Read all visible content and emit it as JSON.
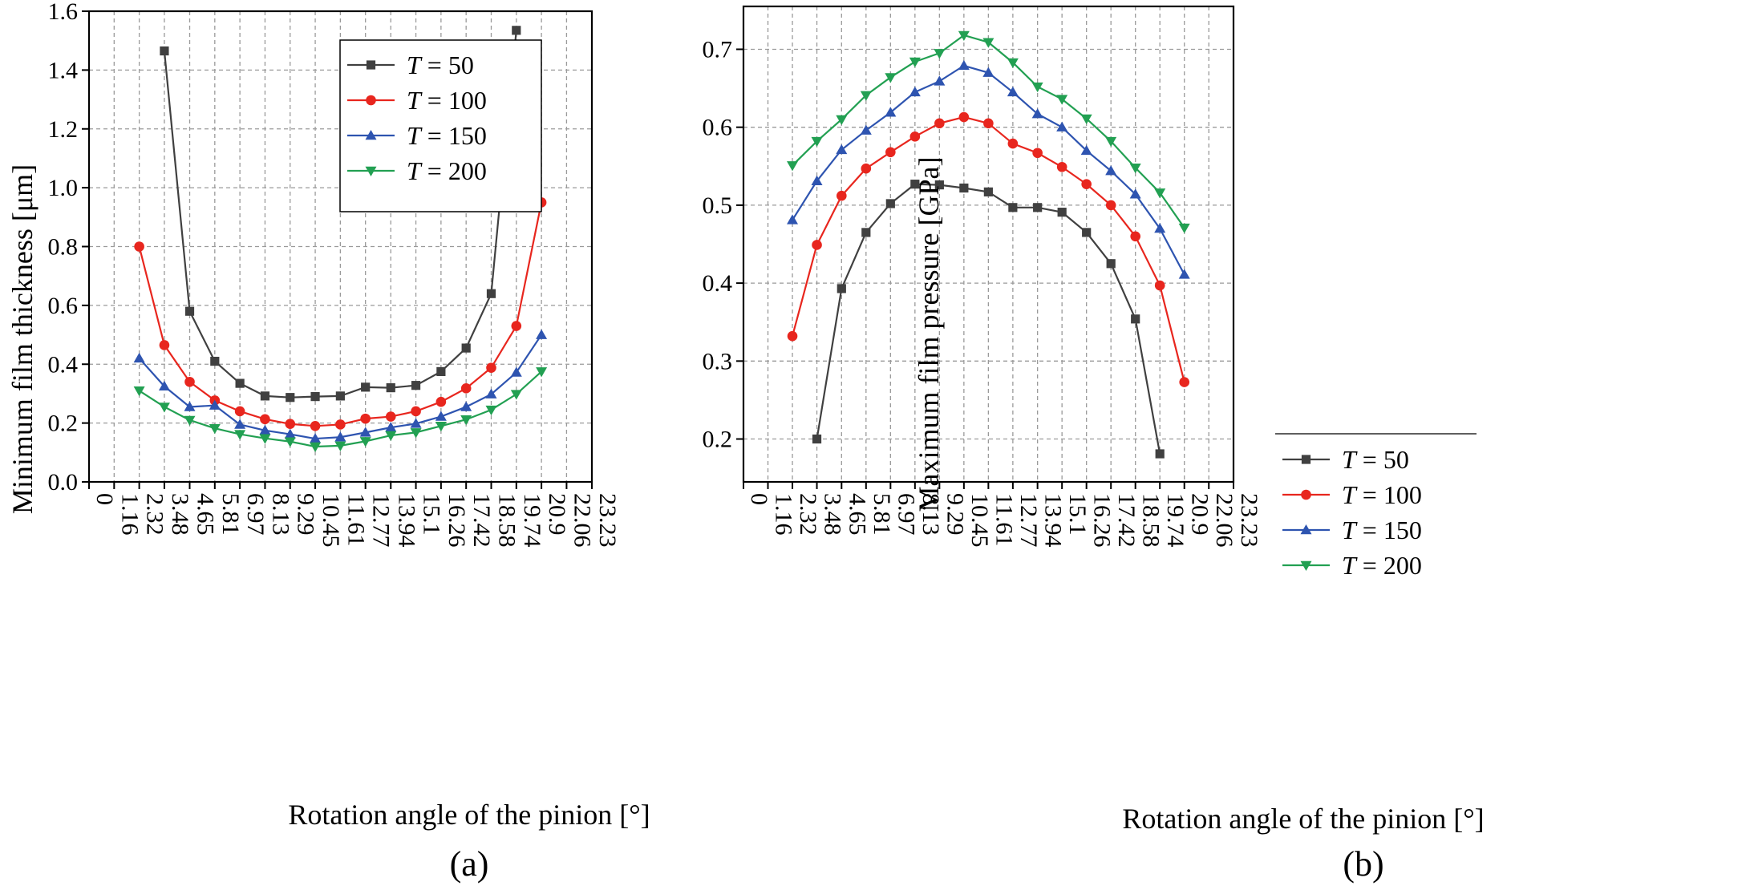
{
  "chart_data": [
    {
      "type": "line",
      "panel_label": "(a)",
      "title": "",
      "xlabel": "Rotation angle of the pinion [°]",
      "ylabel": "Minimum film thickness [μm]",
      "x_ticks": [
        "0",
        "1.16",
        "2.32",
        "3.48",
        "4.65",
        "5.81",
        "6.97",
        "8.13",
        "9.29",
        "10.45",
        "11.61",
        "12.77",
        "13.94",
        "15.1",
        "16.26",
        "17.42",
        "18.58",
        "19.74",
        "20.9",
        "22.06",
        "23.23"
      ],
      "y_ticks": [
        "0.0",
        "0.2",
        "0.4",
        "0.6",
        "0.8",
        "1.0",
        "1.2",
        "1.4",
        "1.6"
      ],
      "xlim": [
        0,
        23.23
      ],
      "ylim": [
        0,
        1.6
      ],
      "grid": true,
      "legend_position": "top-center",
      "series": [
        {
          "name": "T = 50",
          "name_var": "T",
          "name_val": "= 50",
          "color": "#404040",
          "marker": "square",
          "x": [
            3.48,
            4.65,
            5.81,
            6.97,
            8.13,
            9.29,
            10.45,
            11.61,
            12.77,
            13.94,
            15.1,
            16.26,
            17.42,
            18.58,
            19.74
          ],
          "values": [
            1.465,
            0.58,
            0.41,
            0.335,
            0.292,
            0.287,
            0.29,
            0.292,
            0.322,
            0.32,
            0.328,
            0.375,
            0.455,
            0.64,
            1.535
          ]
        },
        {
          "name": "T = 100",
          "name_var": "T",
          "name_val": "= 100",
          "color": "#e8261e",
          "marker": "circle",
          "x": [
            2.32,
            3.48,
            4.65,
            5.81,
            6.97,
            8.13,
            9.29,
            10.45,
            11.61,
            12.77,
            13.94,
            15.1,
            16.26,
            17.42,
            18.58,
            19.74,
            20.9
          ],
          "values": [
            0.8,
            0.465,
            0.34,
            0.277,
            0.24,
            0.213,
            0.197,
            0.19,
            0.195,
            0.215,
            0.222,
            0.24,
            0.272,
            0.318,
            0.388,
            0.53,
            0.95
          ]
        },
        {
          "name": "T = 150",
          "name_var": "T",
          "name_val": "= 150",
          "color": "#2e54b0",
          "marker": "triangle-up",
          "x": [
            2.32,
            3.48,
            4.65,
            5.81,
            6.97,
            8.13,
            9.29,
            10.45,
            11.61,
            12.77,
            13.94,
            15.1,
            16.26,
            17.42,
            18.58,
            19.74,
            20.9
          ],
          "values": [
            0.42,
            0.325,
            0.255,
            0.26,
            0.195,
            0.175,
            0.162,
            0.147,
            0.152,
            0.168,
            0.185,
            0.198,
            0.222,
            0.255,
            0.298,
            0.372,
            0.5
          ]
        },
        {
          "name": "T = 200",
          "name_var": "T",
          "name_val": "= 200",
          "color": "#22a052",
          "marker": "triangle-down",
          "x": [
            2.32,
            3.48,
            4.65,
            5.81,
            6.97,
            8.13,
            9.29,
            10.45,
            11.61,
            12.77,
            13.94,
            15.1,
            16.26,
            17.42,
            18.58,
            19.74,
            20.9
          ],
          "values": [
            0.31,
            0.255,
            0.21,
            0.182,
            0.162,
            0.148,
            0.137,
            0.12,
            0.123,
            0.138,
            0.158,
            0.168,
            0.19,
            0.212,
            0.245,
            0.298,
            0.375
          ]
        }
      ]
    },
    {
      "type": "line",
      "panel_label": "(b)",
      "title": "",
      "xlabel": "Rotation angle of the pinion [°]",
      "ylabel": "Maximum  film pressure [GPa]",
      "x_ticks": [
        "0",
        "1.16",
        "2.32",
        "3.48",
        "4.65",
        "5.81",
        "6.97",
        "8.13",
        "9.29",
        "10.45",
        "11.61",
        "12.77",
        "13.94",
        "15.1",
        "16.26",
        "17.42",
        "18.58",
        "19.74",
        "20.9",
        "22.06",
        "23.23"
      ],
      "y_ticks": [
        "0.2",
        "0.3",
        "0.4",
        "0.5",
        "0.6",
        "0.7"
      ],
      "xlim": [
        0,
        23.23
      ],
      "ylim": [
        0.145,
        0.755
      ],
      "grid": true,
      "legend_position": "bottom-center",
      "series": [
        {
          "name": "T = 50",
          "name_var": "T",
          "name_val": "= 50",
          "color": "#404040",
          "marker": "square",
          "x": [
            3.48,
            4.65,
            5.81,
            6.97,
            8.13,
            9.29,
            10.45,
            11.61,
            12.77,
            13.94,
            15.1,
            16.26,
            17.42,
            18.58,
            19.74
          ],
          "values": [
            0.2,
            0.393,
            0.465,
            0.502,
            0.527,
            0.526,
            0.522,
            0.517,
            0.497,
            0.497,
            0.491,
            0.465,
            0.425,
            0.354,
            0.181
          ]
        },
        {
          "name": "T = 100",
          "name_var": "T",
          "name_val": "= 100",
          "color": "#e8261e",
          "marker": "circle",
          "x": [
            2.32,
            3.48,
            4.65,
            5.81,
            6.97,
            8.13,
            9.29,
            10.45,
            11.61,
            12.77,
            13.94,
            15.1,
            16.26,
            17.42,
            18.58,
            19.74,
            20.9
          ],
          "values": [
            0.332,
            0.449,
            0.512,
            0.547,
            0.568,
            0.588,
            0.605,
            0.613,
            0.605,
            0.579,
            0.567,
            0.549,
            0.527,
            0.5,
            0.46,
            0.397,
            0.273
          ]
        },
        {
          "name": "T = 150",
          "name_var": "T",
          "name_val": "= 150",
          "color": "#2e54b0",
          "marker": "triangle-up",
          "x": [
            2.32,
            3.48,
            4.65,
            5.81,
            6.97,
            8.13,
            9.29,
            10.45,
            11.61,
            12.77,
            13.94,
            15.1,
            16.26,
            17.42,
            18.58,
            19.74,
            20.9
          ],
          "values": [
            0.481,
            0.531,
            0.571,
            0.596,
            0.619,
            0.645,
            0.659,
            0.679,
            0.67,
            0.645,
            0.617,
            0.6,
            0.57,
            0.544,
            0.514,
            0.47,
            0.411
          ]
        },
        {
          "name": "T = 200",
          "name_var": "T",
          "name_val": "= 200",
          "color": "#22a052",
          "marker": "triangle-down",
          "x": [
            2.32,
            3.48,
            4.65,
            5.81,
            6.97,
            8.13,
            9.29,
            10.45,
            11.61,
            12.77,
            13.94,
            15.1,
            16.26,
            17.42,
            18.58,
            19.74,
            20.9
          ],
          "values": [
            0.551,
            0.582,
            0.61,
            0.641,
            0.664,
            0.684,
            0.695,
            0.718,
            0.709,
            0.683,
            0.652,
            0.636,
            0.611,
            0.582,
            0.548,
            0.516,
            0.471
          ]
        }
      ]
    }
  ]
}
